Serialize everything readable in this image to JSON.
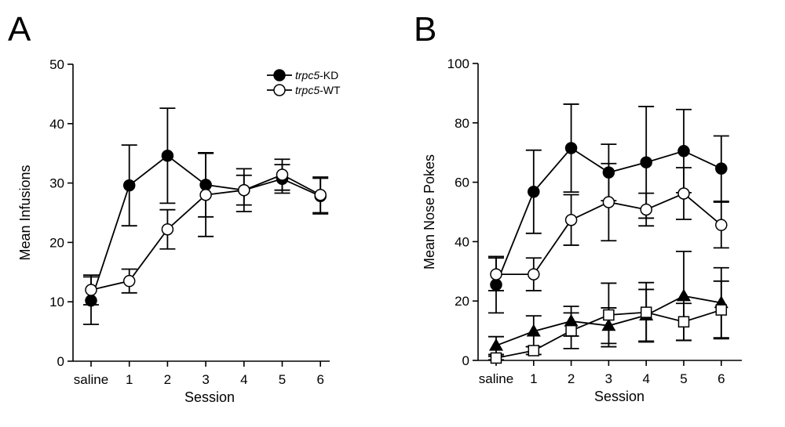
{
  "panels": [
    {
      "letter": "A"
    },
    {
      "letter": "B"
    }
  ],
  "legend": {
    "items": [
      {
        "italic": "trpc5",
        "rest": "-KD",
        "marker": "filled-circle"
      },
      {
        "italic": "trpc5",
        "rest": "-WT",
        "marker": "open-circle"
      }
    ]
  },
  "chart_data": [
    {
      "type": "line",
      "panel": "A",
      "categories": [
        "saline",
        "1",
        "2",
        "3",
        "4",
        "5",
        "6"
      ],
      "xlabel": "Session",
      "ylabel": "Mean Infusions",
      "ylim": [
        0,
        50
      ],
      "yticks": [
        0,
        10,
        20,
        30,
        40,
        50
      ],
      "legend_position": "top-right",
      "series": [
        {
          "name": "trpc5-KD",
          "marker": "filled-circle",
          "values": [
            10.2,
            29.6,
            34.6,
            29.7,
            28.8,
            30.7,
            27.8
          ],
          "errors": [
            4.0,
            6.8,
            8.0,
            5.4,
            3.6,
            2.4,
            3.0
          ]
        },
        {
          "name": "trpc5-WT",
          "marker": "open-circle",
          "values": [
            12.0,
            13.5,
            22.2,
            28.0,
            28.8,
            31.4,
            28.0
          ],
          "errors": [
            2.5,
            2.0,
            3.3,
            7.0,
            2.5,
            2.6,
            3.0
          ]
        }
      ]
    },
    {
      "type": "line",
      "panel": "B",
      "categories": [
        "saline",
        "1",
        "2",
        "3",
        "4",
        "5",
        "6"
      ],
      "xlabel": "Session",
      "ylabel": "Mean Nose Pokes",
      "ylim": [
        0,
        100
      ],
      "yticks": [
        0,
        20,
        40,
        60,
        80,
        100
      ],
      "series": [
        {
          "marker": "filled-circle",
          "values": [
            25.5,
            56.8,
            71.5,
            63.3,
            66.7,
            70.5,
            64.6
          ],
          "errors": [
            9.5,
            14.0,
            14.8,
            9.5,
            18.8,
            14.0,
            11.0
          ]
        },
        {
          "marker": "open-circle",
          "values": [
            29.0,
            29.0,
            47.3,
            53.3,
            50.8,
            56.2,
            45.6
          ],
          "errors": [
            5.5,
            5.5,
            8.5,
            13.0,
            5.5,
            8.7,
            7.7
          ]
        },
        {
          "marker": "filled-triangle",
          "values": [
            5.0,
            9.8,
            13.2,
            11.7,
            15.2,
            21.7,
            19.4
          ],
          "errors": [
            3.0,
            5.2,
            5.0,
            6.0,
            8.7,
            15.0,
            11.8
          ]
        },
        {
          "marker": "open-square",
          "values": [
            0.8,
            3.3,
            10.0,
            15.3,
            16.2,
            13.0,
            17.0
          ],
          "errors": [
            0.6,
            1.3,
            6.0,
            10.7,
            10.0,
            6.2,
            9.7
          ]
        }
      ]
    }
  ]
}
